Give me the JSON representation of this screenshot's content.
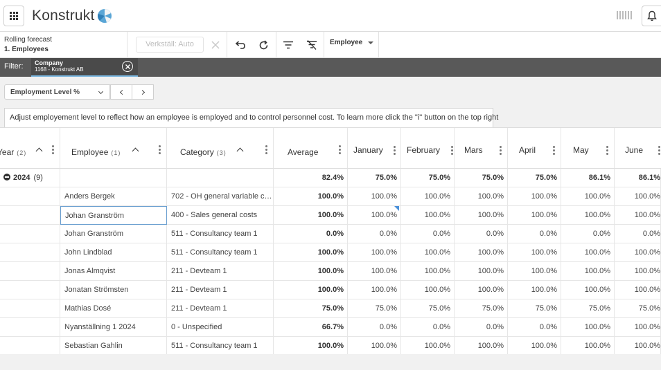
{
  "app": {
    "logo_text": "Konstrukt"
  },
  "toolbar": {
    "breadcrumb_title": "Rolling forecast",
    "breadcrumb_sub": "1. Employees",
    "apply_label": "Verkställ: Auto",
    "dimension_dropdown": "Employee"
  },
  "filter": {
    "label": "Filter:",
    "chip_title": "Company",
    "chip_value": "1168 - Konstrukt AB"
  },
  "controls": {
    "measure": "Employment Level %",
    "info_text": "Adjust employement level to reflect how an employee is employed and to control personnel cost. To learn more click the \"i\" button on the top right"
  },
  "grid": {
    "headers": {
      "year": "Year",
      "year_count": "(2)",
      "employee": "Employee",
      "employee_count": "(1)",
      "category": "Category",
      "category_count": "(3)",
      "average": "Average",
      "months": [
        "January",
        "February",
        "Mars",
        "April",
        "May",
        "June"
      ]
    },
    "group": {
      "label": "2024",
      "count": "(9)",
      "average": "82.4%",
      "months": [
        "75.0%",
        "75.0%",
        "75.0%",
        "75.0%",
        "86.1%",
        "86.1%"
      ]
    },
    "rows": [
      {
        "employee": "Anders Bergek",
        "category": "702 - OH general variable co...",
        "average": "100.0%",
        "months": [
          "100.0%",
          "100.0%",
          "100.0%",
          "100.0%",
          "100.0%",
          "100.0%"
        ]
      },
      {
        "employee": "Johan Granström",
        "category": "400 - Sales general costs",
        "average": "100.0%",
        "months": [
          "100.0%",
          "100.0%",
          "100.0%",
          "100.0%",
          "100.0%",
          "100.0%"
        ]
      },
      {
        "employee": "Johan Granström",
        "category": "511 - Consultancy team 1",
        "average": "0.0%",
        "months": [
          "0.0%",
          "0.0%",
          "0.0%",
          "0.0%",
          "0.0%",
          "0.0%"
        ]
      },
      {
        "employee": "John Lindblad",
        "category": "511 - Consultancy team 1",
        "average": "100.0%",
        "months": [
          "100.0%",
          "100.0%",
          "100.0%",
          "100.0%",
          "100.0%",
          "100.0%"
        ]
      },
      {
        "employee": "Jonas Almqvist",
        "category": "211 - Devteam 1",
        "average": "100.0%",
        "months": [
          "100.0%",
          "100.0%",
          "100.0%",
          "100.0%",
          "100.0%",
          "100.0%"
        ]
      },
      {
        "employee": "Jonatan Strömsten",
        "category": "211 - Devteam 1",
        "average": "100.0%",
        "months": [
          "100.0%",
          "100.0%",
          "100.0%",
          "100.0%",
          "100.0%",
          "100.0%"
        ]
      },
      {
        "employee": "Mathias Dosé",
        "category": "211 - Devteam 1",
        "average": "75.0%",
        "months": [
          "75.0%",
          "75.0%",
          "75.0%",
          "75.0%",
          "75.0%",
          "75.0%"
        ]
      },
      {
        "employee": "Nyanställning 1 2024",
        "category": "0 - Unspecified",
        "average": "66.7%",
        "months": [
          "0.0%",
          "0.0%",
          "0.0%",
          "0.0%",
          "100.0%",
          "100.0%"
        ]
      },
      {
        "employee": "Sebastian Gahlin",
        "category": "511 - Consultancy team 1",
        "average": "100.0%",
        "months": [
          "100.0%",
          "100.0%",
          "100.0%",
          "100.0%",
          "100.0%",
          "100.0%"
        ]
      }
    ]
  }
}
